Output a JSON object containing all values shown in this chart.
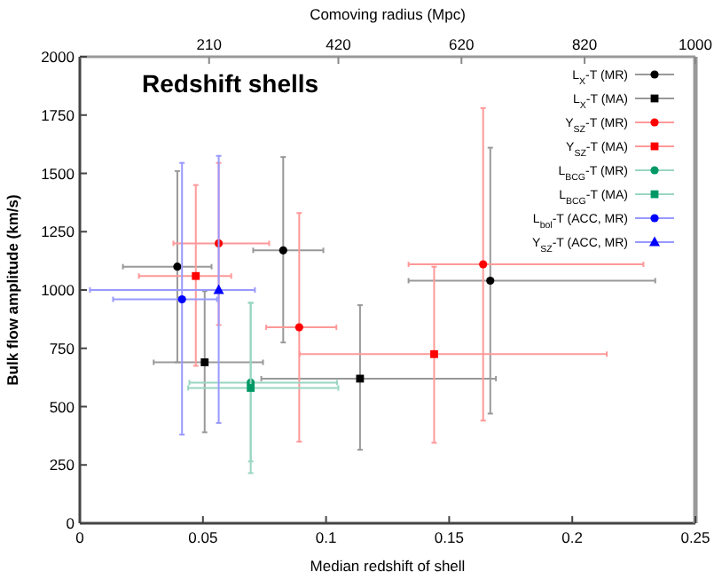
{
  "chart_data": {
    "type": "scatter",
    "title": "Redshift shells",
    "xlabel": "Median redshift of shell",
    "ylabel": "Bulk flow amplitude (km/s)",
    "x2label": "Comoving radius (Mpc)",
    "xlim": [
      0,
      0.25
    ],
    "xticks": [
      0,
      0.05,
      0.1,
      0.15,
      0.2,
      0.25
    ],
    "x2lim": [
      0,
      1000
    ],
    "x2ticks": [
      210,
      420,
      620,
      820,
      1000
    ],
    "ylim": [
      0,
      2000
    ],
    "yticks": [
      0,
      250,
      500,
      750,
      1000,
      1250,
      1500,
      1750,
      2000
    ],
    "grid": false,
    "legend": "top right",
    "series": [
      {
        "name": "L$_{X}$-T (MR)",
        "color": "#000000",
        "marker": "circle",
        "x": [
          0.0396,
          0.0826,
          0.1667
        ],
        "values": [
          1100,
          1170,
          1040
        ],
        "errors": [
          [
            690,
            1510
          ],
          [
            775,
            1570
          ],
          [
            470,
            1610
          ]
        ],
        "xerrors": [
          [
            0.0175,
            0.0535
          ],
          [
            0.0704,
            0.0989
          ],
          [
            0.1335,
            0.2337
          ]
        ]
      },
      {
        "name": "L$_{X}$-T (MA)",
        "color": "#000000",
        "marker": "square",
        "x": [
          0.0507,
          0.1138
        ],
        "values": [
          690,
          620
        ],
        "errors": [
          [
            390,
            995
          ],
          [
            315,
            935
          ]
        ],
        "xerrors": [
          [
            0.03,
            0.0744
          ],
          [
            0.0737,
            0.169
          ]
        ]
      },
      {
        "name": "Y$_{SZ}$-T (MR)",
        "color": "#ff0000",
        "marker": "circle",
        "x": [
          0.0564,
          0.0891,
          0.1638
        ],
        "values": [
          1200,
          840,
          1110
        ],
        "errors": [
          [
            850,
            1545
          ],
          [
            350,
            1330
          ],
          [
            440,
            1780
          ]
        ],
        "xerrors": [
          [
            0.038,
            0.0769
          ],
          [
            0.0757,
            0.1042
          ],
          [
            0.1335,
            0.2289
          ]
        ]
      },
      {
        "name": "Y$_{SZ}$-T (MA)",
        "color": "#ff0000",
        "marker": "square",
        "x": [
          0.0471,
          0.1439
        ],
        "values": [
          1060,
          725
        ],
        "errors": [
          [
            675,
            1450
          ],
          [
            345,
            1100
          ]
        ],
        "xerrors": [
          [
            0.024,
            0.0615
          ],
          [
            0.0893,
            0.214
          ]
        ]
      },
      {
        "name": "L$_{BCG}$-T (MR)",
        "color": "#009966",
        "marker": "circle",
        "x": [
          0.0694
        ],
        "values": [
          603
        ],
        "errors": [
          [
            265,
            945
          ]
        ],
        "xerrors": [
          [
            0.0445,
            0.1045
          ]
        ]
      },
      {
        "name": "L$_{BCG}$-T (MA)",
        "color": "#009966",
        "marker": "square",
        "x": [
          0.0694
        ],
        "values": [
          580
        ],
        "errors": [
          [
            215,
            945
          ]
        ],
        "xerrors": [
          [
            0.044,
            0.105
          ]
        ]
      },
      {
        "name": "L$_{bol}$-T (ACC, MR)",
        "color": "#0000ff",
        "marker": "circle",
        "x": [
          0.0415
        ],
        "values": [
          960
        ],
        "errors": [
          [
            380,
            1545
          ]
        ],
        "xerrors": [
          [
            0.0135,
            0.0557
          ]
        ]
      },
      {
        "name": "Y$_{SZ}$-T (ACC, MR)",
        "color": "#0000ff",
        "marker": "triangle",
        "x": [
          0.0564
        ],
        "values": [
          1000
        ],
        "errors": [
          [
            430,
            1575
          ]
        ],
        "xerrors": [
          [
            0.0041,
            0.0711
          ]
        ]
      }
    ]
  }
}
